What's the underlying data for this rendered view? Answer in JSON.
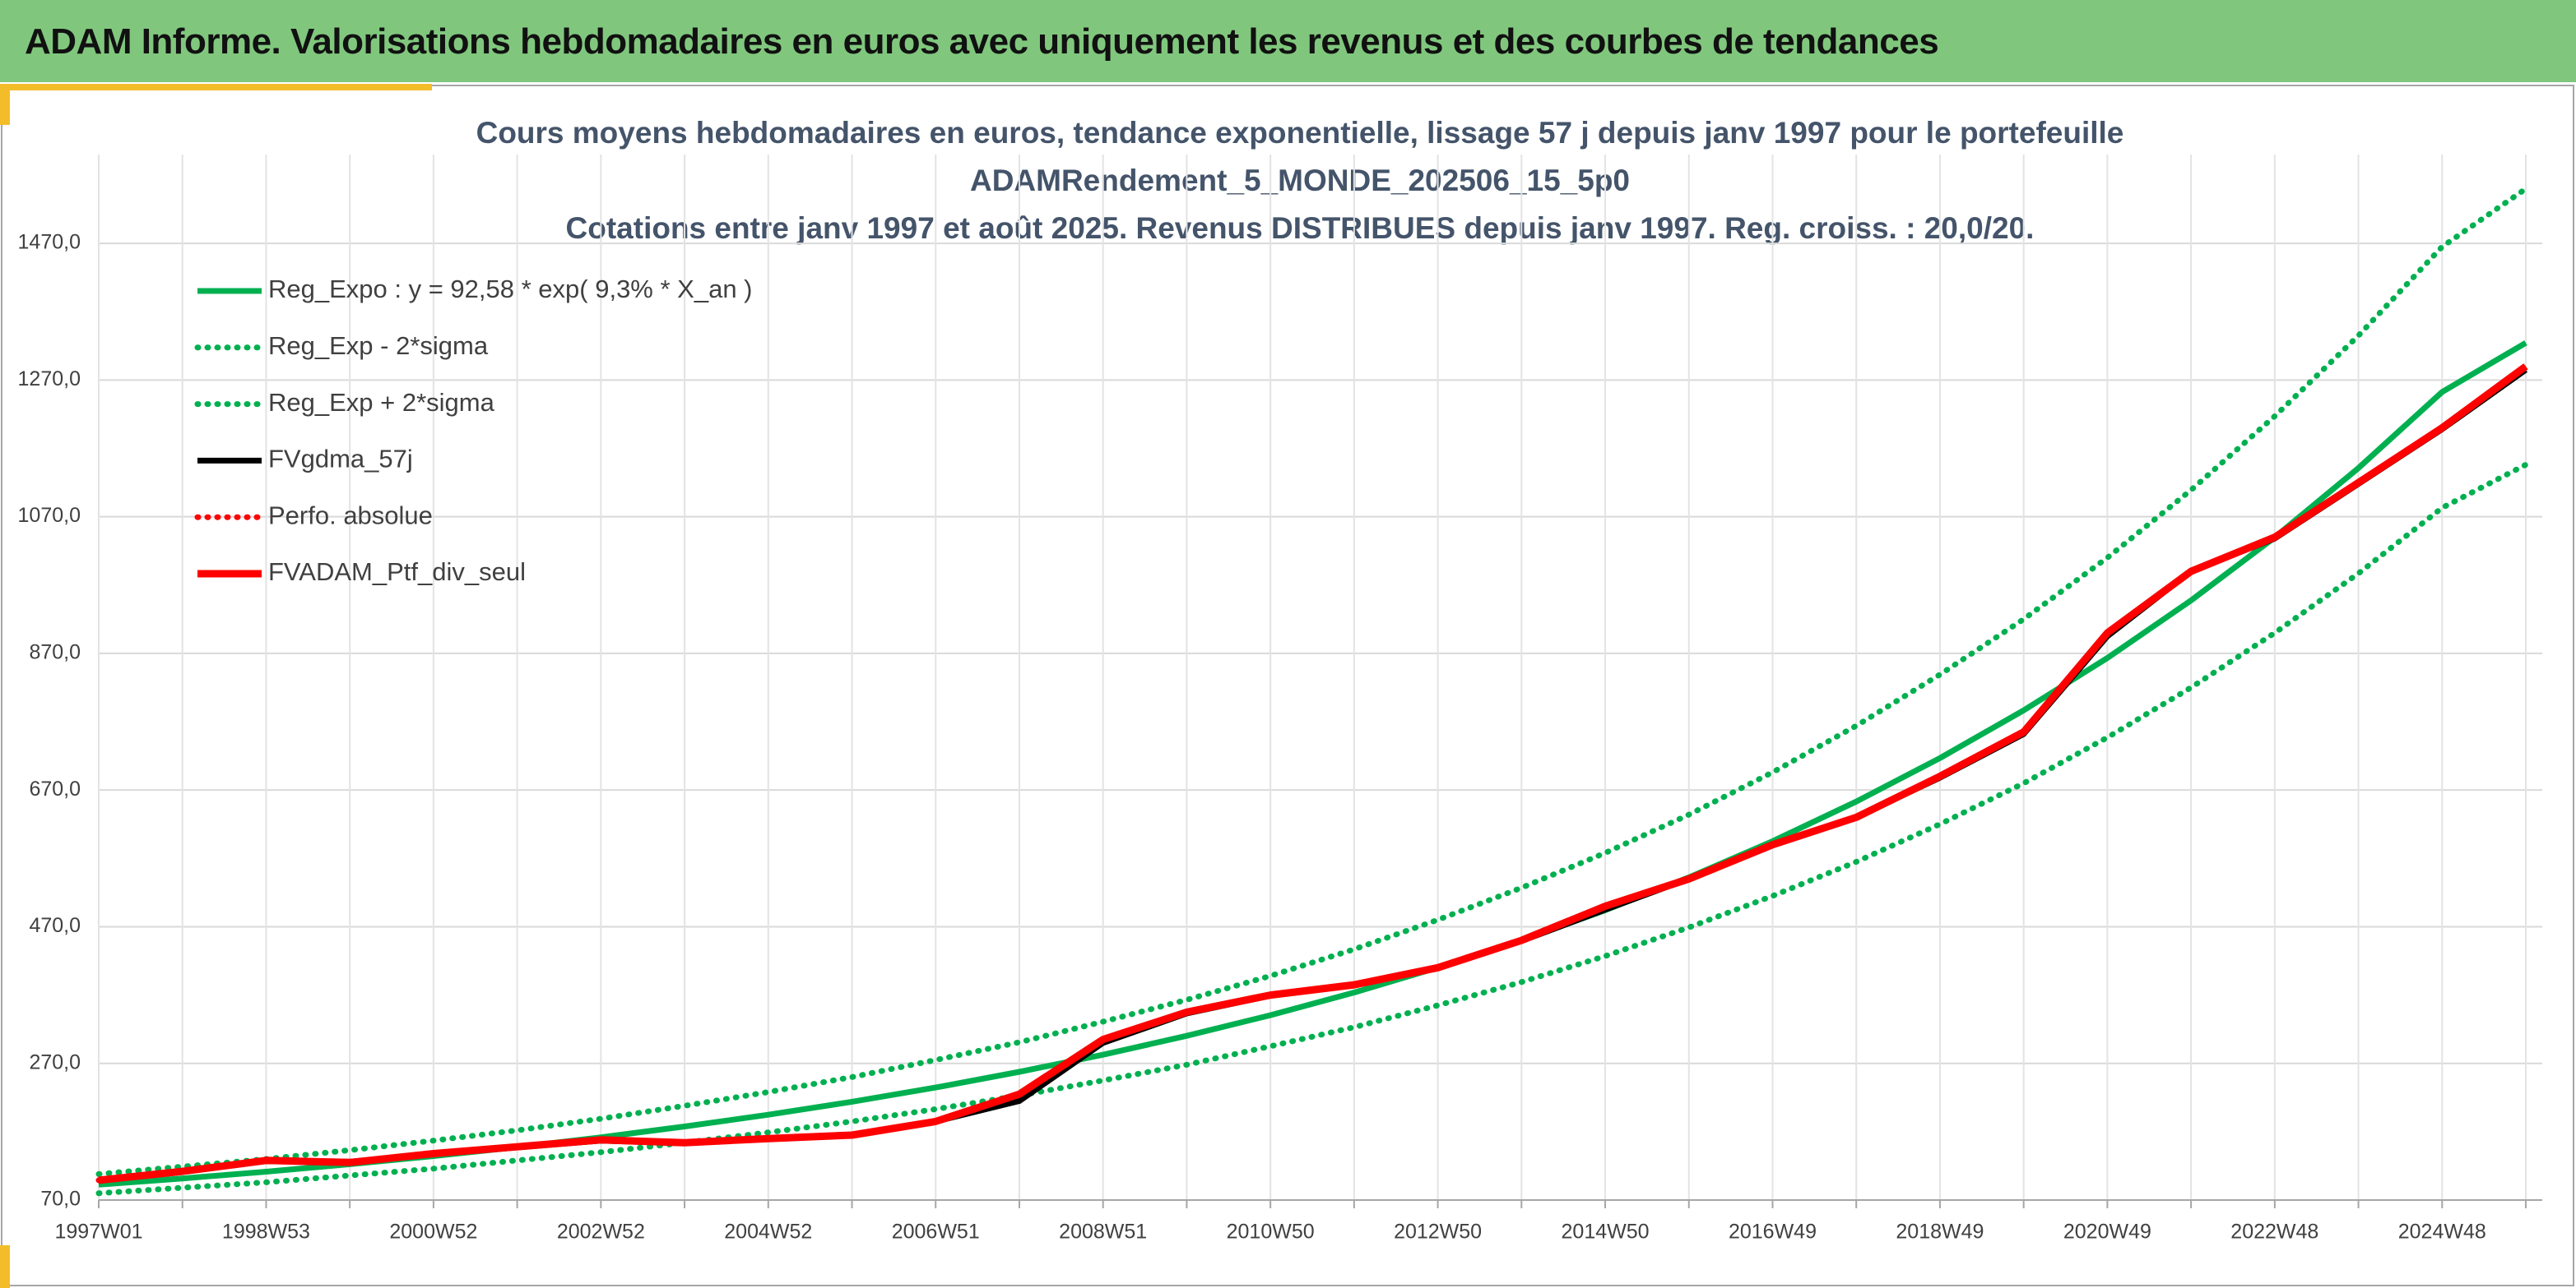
{
  "header_title": "ADAM Informe. Valorisations hebdomadaires en euros avec uniquement les revenus et des courbes de tendances",
  "chart_data": {
    "type": "line",
    "title": [
      "Cours moyens hebdomadaires en euros, tendance exponentielle, lissage 57 j depuis janv 1997 pour le portefeuille",
      "ADAMRendement_5_MONDE_202506_15_5p0",
      "Cotations entre janv 1997 et août 2025. Revenus DISTRIBUES depuis janv 1997. Reg. croiss. : 20,0/20."
    ],
    "categories": [
      "1997W01",
      null,
      "1998W53",
      null,
      "2000W52",
      null,
      "2002W52",
      null,
      "2004W52",
      null,
      "2006W51",
      null,
      "2008W51",
      null,
      "2010W50",
      null,
      "2012W50",
      null,
      "2014W50",
      null,
      "2016W49",
      null,
      "2018W49",
      null,
      "2020W49",
      null,
      "2022W48",
      null,
      "2024W48",
      null
    ],
    "ylim": [
      70,
      1600
    ],
    "yticks": [
      {
        "value": 70,
        "label": "70,0"
      },
      {
        "value": 270,
        "label": "270,0"
      },
      {
        "value": 470,
        "label": "470,0"
      },
      {
        "value": 670,
        "label": "670,0"
      },
      {
        "value": 870,
        "label": "870,0"
      },
      {
        "value": 1070,
        "label": "1070,0"
      },
      {
        "value": 1270,
        "label": "1270,0"
      },
      {
        "value": 1470,
        "label": "1470,0"
      }
    ],
    "grid": true,
    "legend": "top-left",
    "series": [
      {
        "name": "Reg_Expo : y = 92,58 * exp( 9,3% *  X_an )",
        "color": "#00b050",
        "style": "solid",
        "values": [
          92.6,
          101.6,
          111.5,
          122.4,
          134.3,
          147.4,
          161.8,
          177.6,
          194.9,
          213.9,
          234.7,
          257.6,
          282.7,
          310.3,
          340.5,
          373.7,
          410.2,
          450.2,
          494.1,
          542.2,
          595.1,
          653.1,
          716.8,
          786.6,
          863.3,
          947.5,
          1039.9,
          1141.3,
          1252.5,
          1324.4
        ]
      },
      {
        "name": "Reg_Exp - 2*sigma",
        "color": "#00b050",
        "style": "dotted",
        "values": [
          80,
          88,
          96,
          106,
          116,
          128,
          140,
          154,
          169,
          185,
          203,
          223,
          245,
          268,
          295,
          323,
          355,
          389,
          427,
          469,
          515,
          565,
          620,
          680,
          747,
          820,
          900,
          987,
          1083,
          1146
        ]
      },
      {
        "name": "Reg_Exp + 2*sigma",
        "color": "#00b050",
        "style": "dotted",
        "values": [
          108,
          119,
          130,
          143,
          157,
          172,
          189,
          208,
          228,
          250,
          275,
          301,
          331,
          363,
          398,
          437,
          480,
          527,
          578,
          634,
          696,
          764,
          839,
          920,
          1010,
          1109,
          1217,
          1335,
          1465,
          1550
        ]
      },
      {
        "name": "FVgdma_57j",
        "color": "#000000",
        "style": "solid",
        "values": [
          99,
          111,
          127,
          126,
          137,
          147,
          157,
          153,
          160,
          166,
          185,
          215,
          300,
          343,
          369,
          385,
          410,
          449,
          495,
          540,
          589,
          630,
          688,
          752,
          895,
          990,
          1038,
          1118,
          1198,
          1285
        ]
      },
      {
        "name": "Perfo. absolue",
        "color": "#ff0000",
        "style": "dotted",
        "values": [
          99,
          112,
          128,
          125,
          138,
          148,
          158,
          154,
          160,
          165,
          185,
          225,
          305,
          345,
          370,
          385,
          410,
          450,
          500,
          540,
          590,
          630,
          690,
          755,
          900,
          990,
          1040,
          1120,
          1200,
          1290
        ]
      },
      {
        "name": "FVADAM_Ptf_div_seul",
        "color": "#ff0000",
        "style": "solid",
        "values": [
          99,
          112,
          128,
          125,
          138,
          148,
          158,
          154,
          160,
          165,
          185,
          225,
          305,
          345,
          370,
          385,
          410,
          450,
          500,
          540,
          590,
          630,
          690,
          755,
          900,
          990,
          1040,
          1120,
          1200,
          1290
        ]
      }
    ]
  }
}
